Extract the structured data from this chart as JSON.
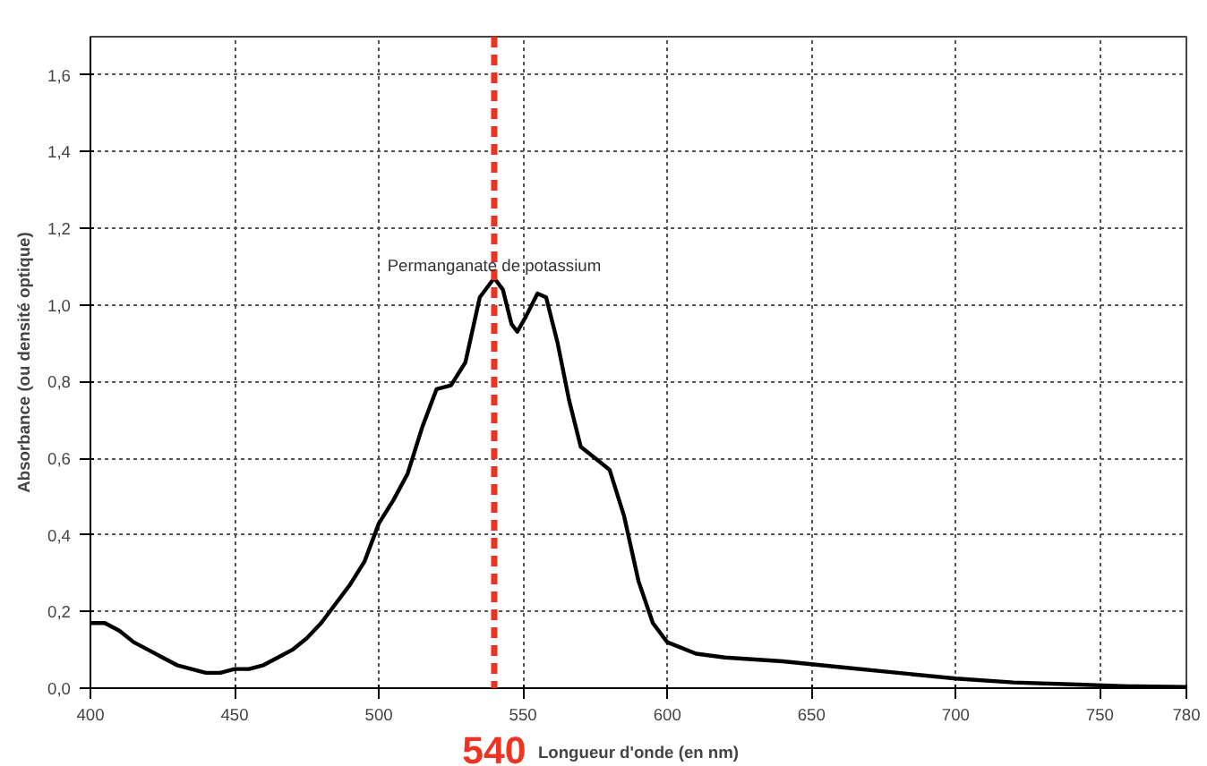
{
  "chart_data": {
    "type": "line",
    "xlabel": "Longueur d'onde (en nm)",
    "ylabel": "Absorbance (ou densité optique)",
    "x": [
      400,
      405,
      410,
      415,
      420,
      425,
      430,
      435,
      440,
      445,
      450,
      455,
      460,
      465,
      470,
      475,
      480,
      485,
      490,
      495,
      500,
      505,
      510,
      515,
      520,
      525,
      530,
      535,
      540,
      543,
      546,
      548,
      551,
      555,
      558,
      562,
      566,
      570,
      575,
      580,
      585,
      590,
      595,
      600,
      610,
      620,
      640,
      660,
      680,
      700,
      720,
      740,
      760,
      780
    ],
    "series": [
      {
        "color": "#000000",
        "values": [
          0.17,
          0.17,
          0.15,
          0.12,
          0.1,
          0.08,
          0.06,
          0.05,
          0.04,
          0.04,
          0.05,
          0.05,
          0.06,
          0.08,
          0.1,
          0.13,
          0.17,
          0.22,
          0.27,
          0.33,
          0.43,
          0.49,
          0.56,
          0.68,
          0.78,
          0.79,
          0.85,
          1.02,
          1.07,
          1.04,
          0.95,
          0.93,
          0.97,
          1.03,
          1.02,
          0.9,
          0.75,
          0.63,
          0.6,
          0.57,
          0.45,
          0.28,
          0.17,
          0.12,
          0.09,
          0.08,
          0.07,
          0.055,
          0.04,
          0.025,
          0.015,
          0.01,
          0.005,
          0.003
        ]
      }
    ],
    "xlim": [
      400,
      780
    ],
    "xticks": [
      400,
      450,
      500,
      550,
      600,
      650,
      700,
      750,
      780
    ],
    "ylim": [
      0,
      1.7
    ],
    "yticks": [
      {
        "value": 0,
        "label": "0,0"
      },
      {
        "value": 0.2,
        "label": "0,2"
      },
      {
        "value": 0.4,
        "label": "0,4"
      },
      {
        "value": 0.6,
        "label": "0,6"
      },
      {
        "value": 0.8,
        "label": "0,8"
      },
      {
        "value": 1.0,
        "label": "1,0"
      },
      {
        "value": 1.2,
        "label": "1,2"
      },
      {
        "value": 1.4,
        "label": "1,4"
      },
      {
        "value": 1.6,
        "label": "1,6"
      }
    ],
    "ref_lines": [
      {
        "axis": "x",
        "value": 540,
        "label": "540",
        "color": "#ee3322",
        "line_style": "dashed"
      }
    ],
    "annotations": [
      {
        "text": "Permanganate de potassium",
        "x": 540,
        "y": 1.08
      }
    ],
    "grid": true,
    "line_style": "solid",
    "marker": "none"
  }
}
